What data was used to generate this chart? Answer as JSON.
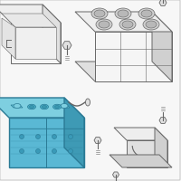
{
  "bg_color": "#f7f7f7",
  "border_color": "#cccccc",
  "battery_fill": "#5ab8d4",
  "battery_top": "#7ecfe0",
  "battery_right": "#3e9ab5",
  "battery_edge": "#2a7a95",
  "gray_fill": "#e0e0e0",
  "gray_mid": "#d0d0d0",
  "gray_dark": "#b8b8b8",
  "gray_edge": "#888888",
  "line_color": "#999999",
  "dark_line": "#666666",
  "white_fill": "#f5f5f5",
  "off_white": "#eeeeee"
}
